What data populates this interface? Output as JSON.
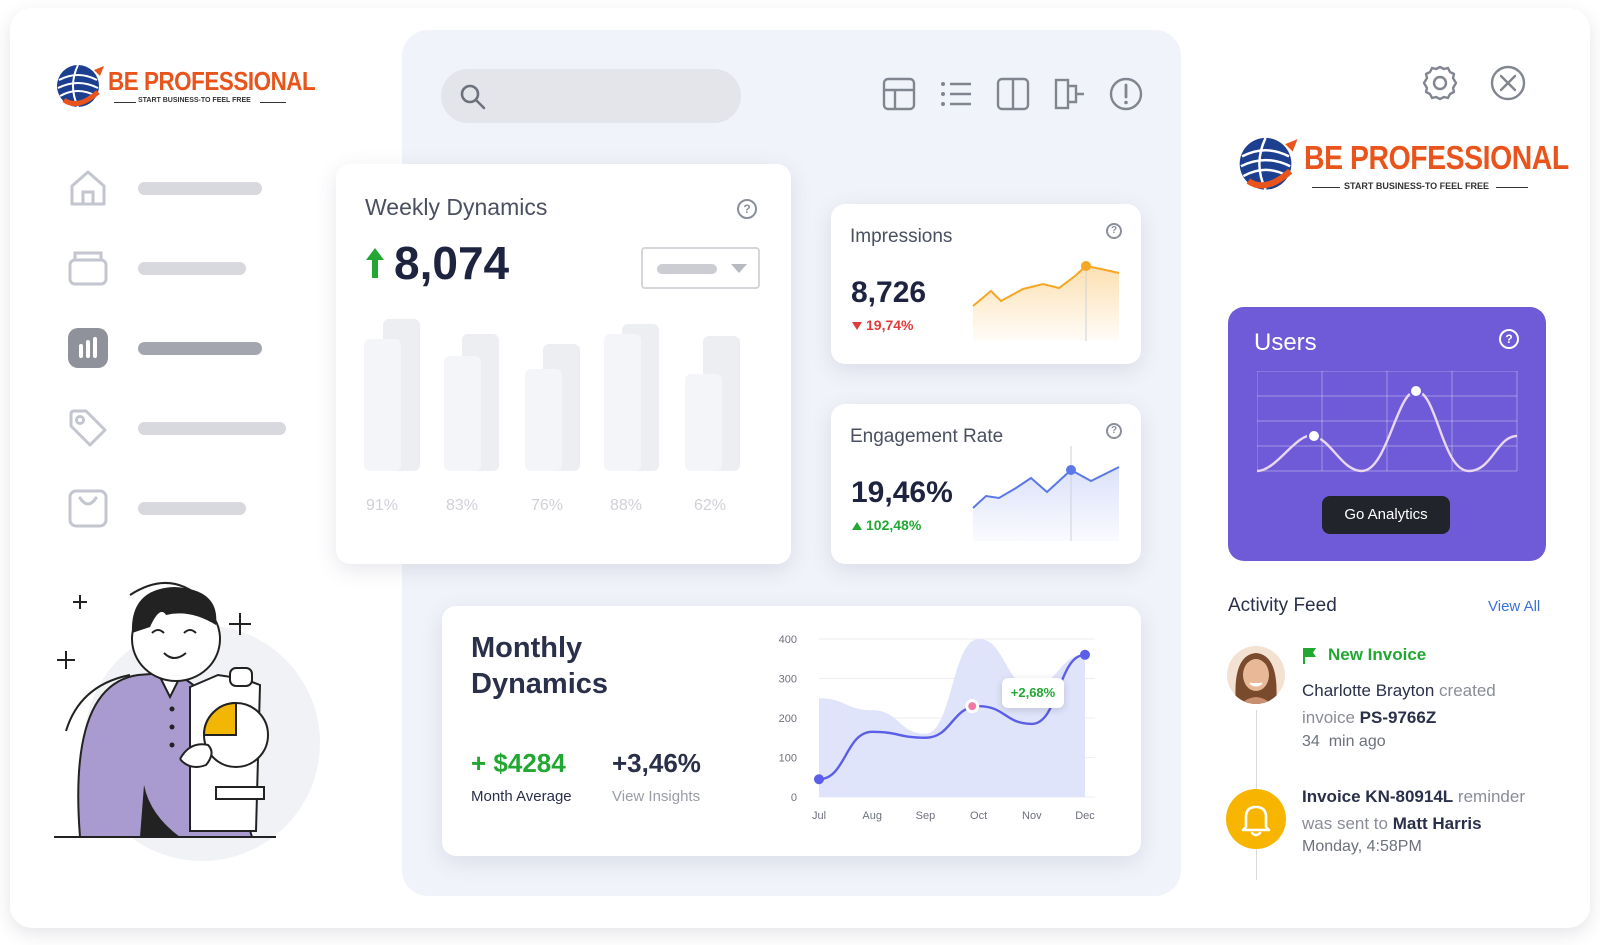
{
  "brand": {
    "name": "BE PROFESSIONAL",
    "tagline": "START BUSINESS-TO FEEL FREE"
  },
  "toolbar": {
    "icons": [
      "grid-icon",
      "list-icon",
      "columns-icon",
      "flow-icon",
      "alert-icon"
    ]
  },
  "sidebar": {
    "items": [
      {
        "icon": "home-icon"
      },
      {
        "icon": "box-icon"
      },
      {
        "icon": "chart-icon"
      },
      {
        "icon": "tag-icon"
      },
      {
        "icon": "bag-icon"
      }
    ]
  },
  "weekly": {
    "title": "Weekly Dynamics",
    "value": "8,074",
    "bar_labels": [
      "91%",
      "83%",
      "76%",
      "88%",
      "62%"
    ]
  },
  "impressions": {
    "title": "Impressions",
    "value": "8,726",
    "change": "19,74%"
  },
  "engagement": {
    "title": "Engagement Rate",
    "value": "19,46%",
    "change": "102,48%"
  },
  "monthly": {
    "title_line1": "Monthly",
    "title_line2": "Dynamics",
    "avg_value": "+ $4284",
    "avg_label": "Month Average",
    "insights_value": "+3,46%",
    "insights_label": "View Insights",
    "badge": "+2,68%"
  },
  "chart_data": {
    "type": "line",
    "categories": [
      "Jul",
      "Aug",
      "Sep",
      "Oct",
      "Nov",
      "Dec"
    ],
    "yticks": [
      "400",
      "300",
      "200",
      "100",
      "0"
    ],
    "ylim": [
      0,
      400
    ],
    "series": [
      {
        "name": "line",
        "values": [
          45,
          165,
          150,
          230,
          185,
          360
        ]
      },
      {
        "name": "area",
        "values": [
          250,
          220,
          160,
          400,
          280,
          360
        ]
      }
    ]
  },
  "users": {
    "title": "Users",
    "button": "Go Analytics"
  },
  "activity": {
    "title": "Activity Feed",
    "view_all": "View All",
    "items": [
      {
        "tag": "New Invoice",
        "name": "Charlotte Brayton",
        "text1": "created",
        "text2": "invoice",
        "ref": "PS-9766Z",
        "time": "34  min ago"
      },
      {
        "ref": "Invoice KN-80914L",
        "text1": "reminder",
        "text2": "was sent to",
        "name": "Matt Harris",
        "time": "Monday, 4:58PM"
      }
    ]
  },
  "colors": {
    "accent": "#6f5bd8",
    "orange": "#f5a623",
    "green": "#22a832",
    "red": "#e03b3b",
    "blue": "#5b5ee6"
  }
}
